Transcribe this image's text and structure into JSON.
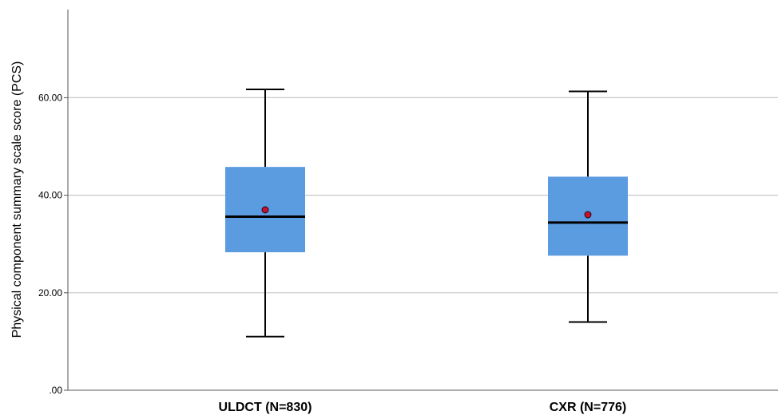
{
  "chart_data": {
    "type": "box",
    "ylabel": "Physical component summary scale score (PCS)",
    "ylim": [
      0,
      78
    ],
    "yticks": [
      {
        "value": 0,
        "label": ".00"
      },
      {
        "value": 20,
        "label": "20.00"
      },
      {
        "value": 40,
        "label": "40.00"
      },
      {
        "value": 60,
        "label": "60.00"
      }
    ],
    "grid": true,
    "colors": {
      "box_fill": "#5b9be0",
      "median": "#000000",
      "mean_marker": "#c8102e",
      "grid": "#c8c8c8",
      "axis": "#555555"
    },
    "categories": [
      "ULDCT (N=830)",
      "CXR (N=776)"
    ],
    "boxes": [
      {
        "min": 11.0,
        "q1": 28.3,
        "median": 35.6,
        "q3": 45.8,
        "max": 61.7,
        "mean": 37.0
      },
      {
        "min": 14.0,
        "q1": 27.6,
        "median": 34.4,
        "q3": 43.8,
        "max": 61.3,
        "mean": 36.0
      }
    ]
  }
}
